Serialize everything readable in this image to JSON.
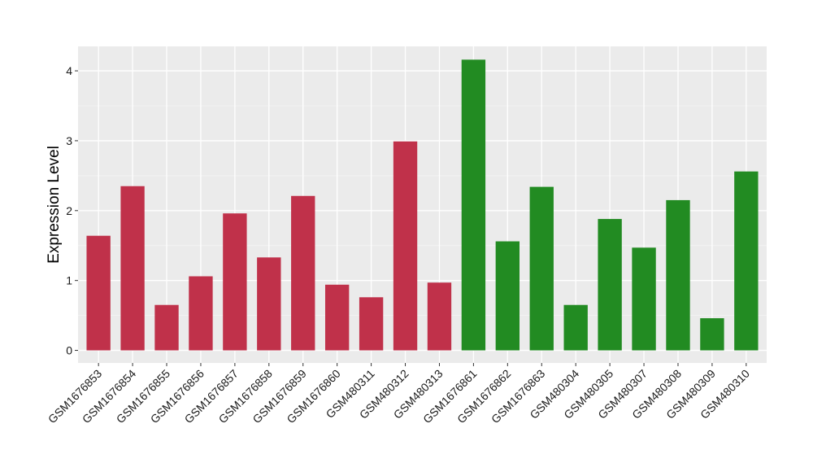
{
  "chart_data": {
    "type": "bar",
    "title": "",
    "xlabel": "",
    "ylabel": "Expression Level",
    "ylim": [
      -0.18,
      4.35
    ],
    "yticks": [
      0,
      1,
      2,
      3,
      4
    ],
    "grid": true,
    "background": "#EBEBEB",
    "categories": [
      "GSM1676853",
      "GSM1676854",
      "GSM1676855",
      "GSM1676856",
      "GSM1676857",
      "GSM1676858",
      "GSM1676859",
      "GSM1676860",
      "GSM480311",
      "GSM480312",
      "GSM480313",
      "GSM1676861",
      "GSM1676862",
      "GSM1676863",
      "GSM480304",
      "GSM480305",
      "GSM480307",
      "GSM480308",
      "GSM480309",
      "GSM480310"
    ],
    "values": [
      1.64,
      2.35,
      0.65,
      1.06,
      1.96,
      1.33,
      2.21,
      0.94,
      0.76,
      2.99,
      0.97,
      4.16,
      1.56,
      2.34,
      0.65,
      1.88,
      1.47,
      2.15,
      0.46,
      2.56
    ],
    "colors": [
      "#C0314A",
      "#C0314A",
      "#C0314A",
      "#C0314A",
      "#C0314A",
      "#C0314A",
      "#C0314A",
      "#C0314A",
      "#C0314A",
      "#C0314A",
      "#C0314A",
      "#228B22",
      "#228B22",
      "#228B22",
      "#228B22",
      "#228B22",
      "#228B22",
      "#228B22",
      "#228B22",
      "#228B22"
    ]
  }
}
